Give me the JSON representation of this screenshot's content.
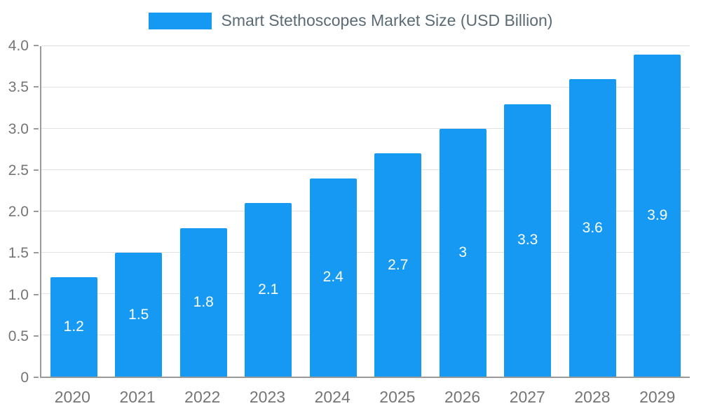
{
  "chart_data": {
    "type": "bar",
    "title": "Smart Stethoscopes Market Size (USD Billion)",
    "categories": [
      "2020",
      "2021",
      "2022",
      "2023",
      "2024",
      "2025",
      "2026",
      "2027",
      "2028",
      "2029"
    ],
    "values": [
      1.2,
      1.5,
      1.8,
      2.1,
      2.4,
      2.7,
      3,
      3.3,
      3.6,
      3.9
    ],
    "value_labels": [
      "1.2",
      "1.5",
      "1.8",
      "2.1",
      "2.4",
      "2.7",
      "3",
      "3.3",
      "3.6",
      "3.9"
    ],
    "xlabel": "",
    "ylabel": "",
    "ylim": [
      0,
      4
    ],
    "yticks": [
      {
        "value": 0,
        "label": "0"
      },
      {
        "value": 0.5,
        "label": "0.5"
      },
      {
        "value": 1,
        "label": "1.0"
      },
      {
        "value": 1.5,
        "label": "1.5"
      },
      {
        "value": 2,
        "label": "2.0"
      },
      {
        "value": 2.5,
        "label": "2.5"
      },
      {
        "value": 3,
        "label": "3.0"
      },
      {
        "value": 3.5,
        "label": "3.5"
      },
      {
        "value": 4,
        "label": "4.0"
      }
    ],
    "grid": true,
    "legend_position": "top",
    "colors": {
      "bar": "#1599f2",
      "grid": "#e2e2e2",
      "axis": "#9a9a9a",
      "tick_text": "#757575",
      "title_text": "#5b6b76",
      "bar_label": "#ffffff",
      "background": "#ffffff"
    }
  }
}
